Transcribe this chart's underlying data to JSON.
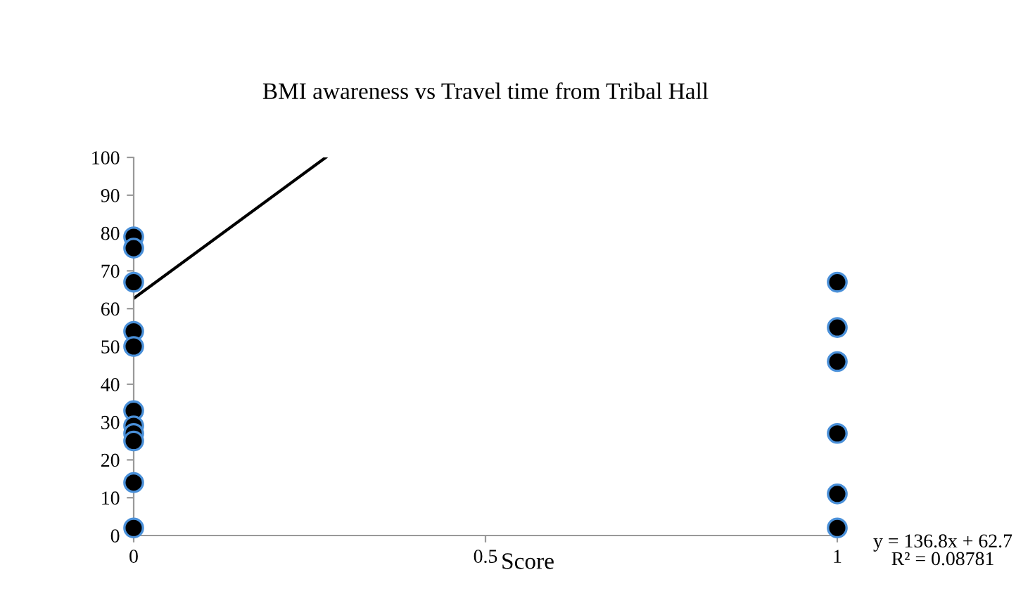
{
  "chart_data": {
    "type": "scatter",
    "title": "BMI awareness vs Travel time from Tribal Hall",
    "xlabel": "Score",
    "series": [
      {
        "color": "#000000",
        "marker": "circle",
        "x": [
          0,
          0,
          0,
          0,
          0,
          0,
          0,
          0,
          0,
          0,
          0,
          1,
          1,
          1,
          1,
          1,
          1
        ],
        "values": [
          79,
          76,
          67,
          54,
          50,
          33,
          29,
          27,
          25,
          14,
          2,
          67,
          55,
          46,
          27,
          11,
          2
        ]
      },
      {
        "type": "line",
        "marker": "none",
        "color": "#000000",
        "x": [
          0,
          0.273
        ],
        "values": [
          62.7,
          100
        ]
      }
    ],
    "xlim": [
      0,
      1
    ],
    "xticks": [
      0,
      0.5,
      1
    ],
    "ylim": [
      0,
      100
    ],
    "yticks": [
      0,
      10,
      20,
      30,
      40,
      50,
      60,
      70,
      80,
      90,
      100
    ],
    "grid": false,
    "legend": false,
    "annotations": [
      "y = 136.8x + 62.7\nR² = 0.08781"
    ]
  }
}
